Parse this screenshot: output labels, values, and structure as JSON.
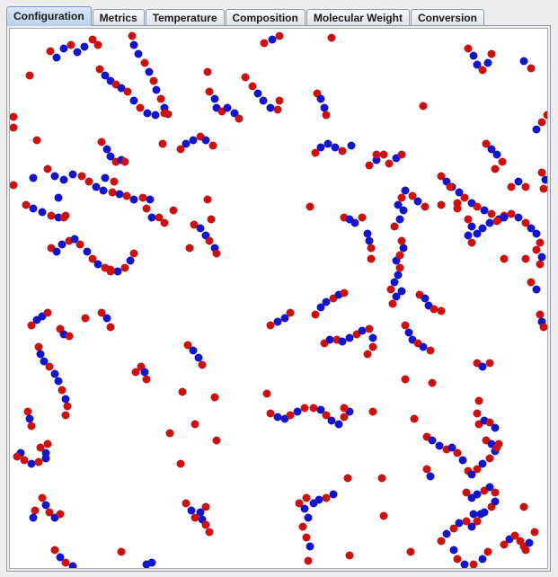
{
  "tabs": [
    {
      "label": "Configuration",
      "active": true
    },
    {
      "label": "Metrics",
      "active": false
    },
    {
      "label": "Temperature",
      "active": false
    },
    {
      "label": "Composition",
      "active": false
    },
    {
      "label": "Molecular Weight",
      "active": false
    },
    {
      "label": "Conversion",
      "active": false
    }
  ],
  "colors": {
    "monomer_red": "#cc1111",
    "monomer_blue": "#1414c8",
    "canvas_background": "#ffffff"
  },
  "configuration": {
    "description_hidden": true
  }
}
